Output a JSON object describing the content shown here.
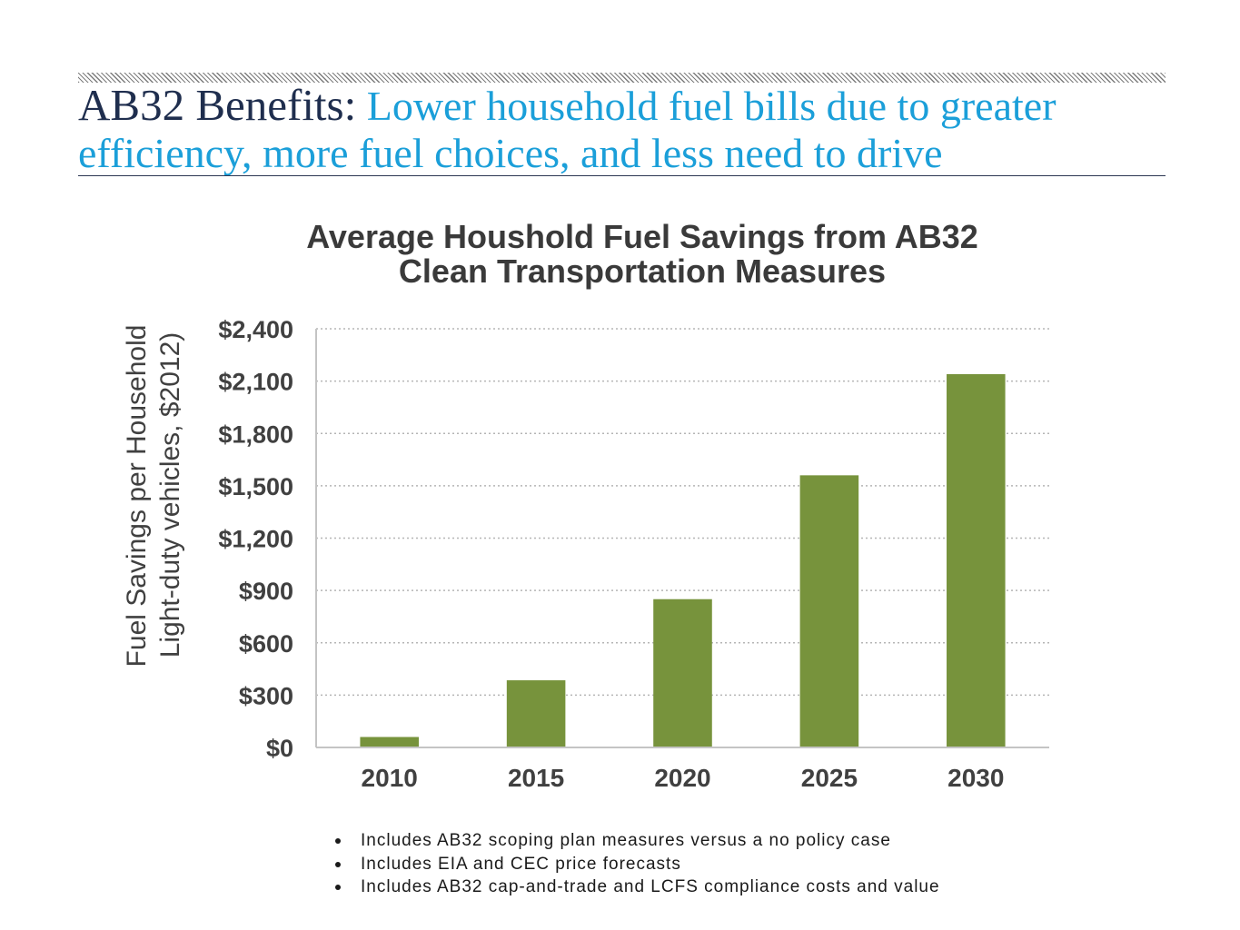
{
  "header": {
    "title_lead": "AB32 Benefits:",
    "title_highlight_lines": [
      "Lower household fuel bills due to greater",
      "efficiency, more fuel choices, and less need to drive"
    ]
  },
  "colors": {
    "title_dark": "#1f2e4e",
    "title_accent": "#1b9fd9",
    "rule": "#2b3652",
    "chart_text": "#404040",
    "gridline": "#b5b5b5"
  },
  "chart_data": {
    "type": "bar",
    "title_lines": [
      "Average Houshold Fuel Savings from AB32",
      "Clean Transportation Measures"
    ],
    "ylabel_lines": [
      "Fuel Savings per Household",
      "Light-duty vehicles, $2012)"
    ],
    "xlabel": "",
    "categories": [
      "2010",
      "2015",
      "2020",
      "2025",
      "2030"
    ],
    "values": [
      60,
      385,
      850,
      1560,
      2140
    ],
    "ylim": [
      0,
      2400
    ],
    "yticks": [
      0,
      300,
      600,
      900,
      1200,
      1500,
      1800,
      2100,
      2400
    ],
    "ytick_labels": [
      "$0",
      "$300",
      "$600",
      "$900",
      "$1,200",
      "$1,500",
      "$1,800",
      "$2,100",
      "$2,400"
    ],
    "grid": true,
    "grid_style": "dotted",
    "legend": "none",
    "bar_color": "#77933c"
  },
  "notes": [
    "Includes AB32 scoping plan measures versus a no policy case",
    "Includes EIA and CEC price forecasts",
    "Includes AB32 cap-and-trade and LCFS compliance costs and value"
  ]
}
